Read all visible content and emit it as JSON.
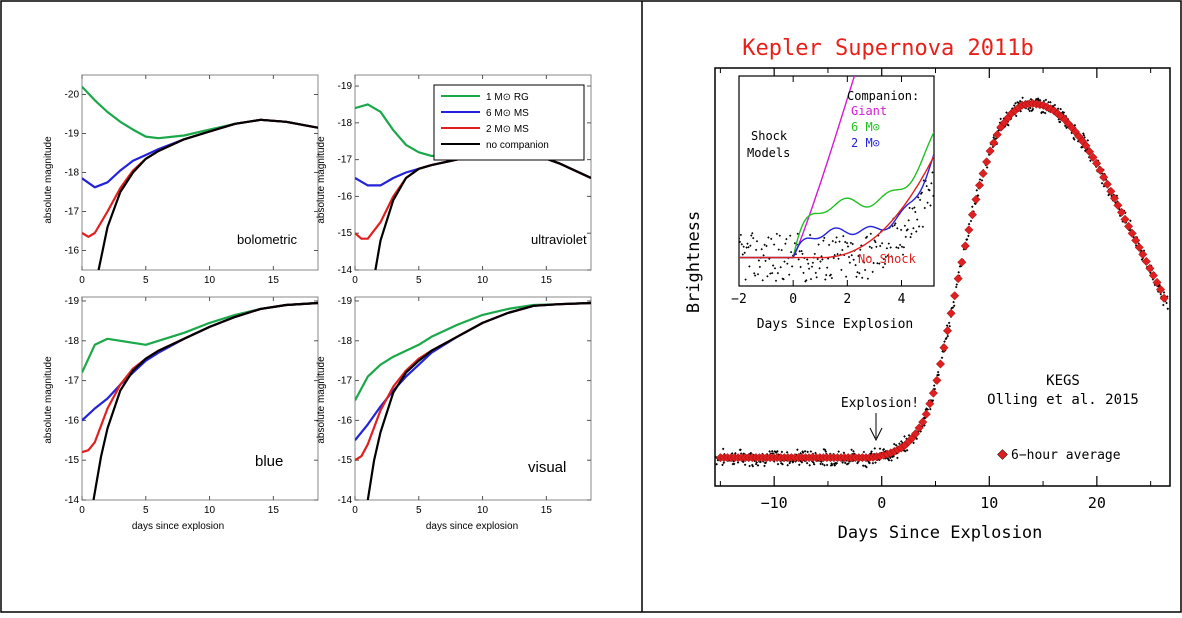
{
  "left_figure": {
    "legend": [
      {
        "label": "1 M⊙ RG",
        "color": "#1aa84a"
      },
      {
        "label": "6 M⊙ MS",
        "color": "#2323d8"
      },
      {
        "label": "2 M⊙ MS",
        "color": "#e02020"
      },
      {
        "label": "no companion",
        "color": "#000000"
      }
    ],
    "ylabel": "absolute magnitude",
    "xlabel": "days since explosion",
    "panels": [
      {
        "band": "bolometric",
        "ymin": -15.5,
        "ymax": -20.5,
        "yticks": [
          "-20",
          "-19",
          "-18",
          "-17",
          "-16"
        ],
        "yvals": [
          -20,
          -19,
          -18,
          -17,
          -16
        ]
      },
      {
        "band": "ultraviolet",
        "ymin": -14,
        "ymax": -19.3,
        "yticks": [
          "-19",
          "-18",
          "-17",
          "-16",
          "-15",
          "-14"
        ],
        "yvals": [
          -19,
          -18,
          -17,
          -16,
          -15,
          -14
        ]
      },
      {
        "band": "blue",
        "ymin": -14,
        "ymax": -19.1,
        "yticks": [
          "-19",
          "-18",
          "-17",
          "-16",
          "-15",
          "-14"
        ],
        "yvals": [
          -19,
          -18,
          -17,
          -16,
          -15,
          -14
        ]
      },
      {
        "band": "visual",
        "ymin": -14,
        "ymax": -19.1,
        "yticks": [
          "-19",
          "-18",
          "-17",
          "-16",
          "-15",
          "-14"
        ],
        "yvals": [
          -19,
          -18,
          -17,
          -16,
          -15,
          -14
        ]
      }
    ],
    "xticks": [
      "0",
      "5",
      "10",
      "15"
    ]
  },
  "right_figure": {
    "title": "Kepler Supernova 2011b",
    "ylabel": "Brightness",
    "xlabel": "Days Since Explosion",
    "xticks": [
      "−10",
      "0",
      "10",
      "20"
    ],
    "annotation": "Explosion!",
    "credit_line1": "KEGS",
    "credit_line2": "Olling et al. 2015",
    "legend_average": "6−hour average",
    "inset": {
      "xlabel": "Days Since Explosion",
      "xticks": [
        "−2",
        "0",
        "2",
        "4"
      ],
      "shock_label_1": "Shock",
      "shock_label_2": "Models",
      "companion_label": "Companion:",
      "giant_label": "Giant",
      "six_label": "6 M⊙",
      "two_label": "2 M⊙",
      "no_shock_label": "No Shock"
    }
  },
  "chart_data": [
    {
      "type": "line",
      "title": "bolometric",
      "xlabel": "days since explosion",
      "ylabel": "absolute magnitude",
      "xlim": [
        0,
        18.5
      ],
      "series": [
        {
          "name": "1 M⊙ RG",
          "x": [
            0,
            1,
            2,
            3,
            4,
            5,
            6,
            8,
            10,
            12,
            14,
            16,
            18.5
          ],
          "values": [
            -20.2,
            -19.85,
            -19.55,
            -19.3,
            -19.1,
            -18.92,
            -18.88,
            -18.95,
            -19.1,
            -19.25,
            -19.35,
            -19.3,
            -19.15
          ]
        },
        {
          "name": "6 M⊙ MS",
          "x": [
            0,
            1,
            2,
            3,
            4,
            5,
            6,
            8,
            10,
            12,
            14,
            16,
            18.5
          ],
          "values": [
            -17.85,
            -17.62,
            -17.75,
            -18.05,
            -18.3,
            -18.45,
            -18.6,
            -18.85,
            -19.05,
            -19.25,
            -19.35,
            -19.3,
            -19.15
          ]
        },
        {
          "name": "2 M⊙ MS",
          "x": [
            0,
            0.5,
            1,
            2,
            3,
            4,
            5,
            6,
            8,
            10,
            12,
            14,
            16,
            18.5
          ],
          "values": [
            -16.45,
            -16.35,
            -16.45,
            -17.0,
            -17.6,
            -18.05,
            -18.35,
            -18.55,
            -18.85,
            -19.05,
            -19.25,
            -19.35,
            -19.3,
            -19.15
          ]
        },
        {
          "name": "no companion",
          "x": [
            1.3,
            2,
            3,
            4,
            5,
            6,
            8,
            10,
            12,
            14,
            16,
            18.5
          ],
          "values": [
            -15.5,
            -16.6,
            -17.5,
            -18.0,
            -18.35,
            -18.55,
            -18.85,
            -19.05,
            -19.25,
            -19.35,
            -19.3,
            -19.15
          ]
        }
      ]
    },
    {
      "type": "line",
      "title": "ultraviolet",
      "xlabel": "days since explosion",
      "ylabel": "absolute magnitude",
      "xlim": [
        0,
        18.5
      ],
      "series": [
        {
          "name": "1 M⊙ RG",
          "x": [
            0,
            1,
            2,
            3,
            4,
            5,
            6,
            8,
            10,
            12,
            14,
            16,
            18.5
          ],
          "values": [
            -18.4,
            -18.5,
            -18.3,
            -17.8,
            -17.4,
            -17.2,
            -17.1,
            -17.1,
            -17.2,
            -17.3,
            -17.15,
            -16.9,
            -16.5
          ]
        },
        {
          "name": "6 M⊙ MS",
          "x": [
            0,
            1,
            2,
            3,
            4,
            5,
            6,
            8,
            10,
            12,
            14,
            16,
            18.5
          ],
          "values": [
            -16.5,
            -16.3,
            -16.3,
            -16.5,
            -16.65,
            -16.75,
            -16.85,
            -17.0,
            -17.2,
            -17.3,
            -17.15,
            -16.9,
            -16.5
          ]
        },
        {
          "name": "2 M⊙ MS",
          "x": [
            0,
            0.5,
            1,
            2,
            3,
            4,
            5,
            6,
            8,
            10,
            12,
            14,
            16,
            18.5
          ],
          "values": [
            -15.0,
            -14.85,
            -14.85,
            -15.3,
            -16.0,
            -16.5,
            -16.75,
            -16.85,
            -17.0,
            -17.2,
            -17.3,
            -17.15,
            -16.9,
            -16.5
          ]
        },
        {
          "name": "no companion",
          "x": [
            1.6,
            2,
            3,
            4,
            5,
            6,
            8,
            10,
            12,
            14,
            16,
            18.5
          ],
          "values": [
            -14.0,
            -14.8,
            -15.9,
            -16.5,
            -16.75,
            -16.85,
            -17.0,
            -17.2,
            -17.3,
            -17.15,
            -16.9,
            -16.5
          ]
        }
      ]
    },
    {
      "type": "line",
      "title": "blue",
      "xlabel": "days since explosion",
      "ylabel": "absolute magnitude",
      "xlim": [
        0,
        18.5
      ],
      "series": [
        {
          "name": "1 M⊙ RG",
          "x": [
            0,
            1,
            2,
            3,
            4,
            5,
            6,
            8,
            10,
            12,
            14,
            16,
            18.5
          ],
          "values": [
            -17.2,
            -17.9,
            -18.05,
            -18.0,
            -17.95,
            -17.9,
            -18.0,
            -18.2,
            -18.45,
            -18.65,
            -18.8,
            -18.9,
            -18.95
          ]
        },
        {
          "name": "6 M⊙ MS",
          "x": [
            0,
            1,
            2,
            3,
            4,
            5,
            6,
            8,
            10,
            12,
            14,
            16,
            18.5
          ],
          "values": [
            -16.0,
            -16.3,
            -16.55,
            -16.9,
            -17.2,
            -17.5,
            -17.7,
            -18.05,
            -18.35,
            -18.6,
            -18.8,
            -18.9,
            -18.95
          ]
        },
        {
          "name": "2 M⊙ MS",
          "x": [
            0,
            0.5,
            1,
            2,
            3,
            4,
            5,
            6,
            8,
            10,
            12,
            14,
            16,
            18.5
          ],
          "values": [
            -15.2,
            -15.25,
            -15.45,
            -16.3,
            -16.9,
            -17.3,
            -17.55,
            -17.75,
            -18.05,
            -18.35,
            -18.6,
            -18.8,
            -18.9,
            -18.95
          ]
        },
        {
          "name": "no companion",
          "x": [
            0.9,
            1.5,
            2,
            3,
            4,
            5,
            6,
            8,
            10,
            12,
            14,
            16,
            18.5
          ],
          "values": [
            -14.0,
            -15.1,
            -15.8,
            -16.75,
            -17.25,
            -17.55,
            -17.75,
            -18.05,
            -18.35,
            -18.6,
            -18.8,
            -18.9,
            -18.95
          ]
        }
      ]
    },
    {
      "type": "line",
      "title": "visual",
      "xlabel": "days since explosion",
      "ylabel": "absolute magnitude",
      "xlim": [
        0,
        18.5
      ],
      "series": [
        {
          "name": "1 M⊙ RG",
          "x": [
            0,
            1,
            2,
            3,
            4,
            5,
            6,
            8,
            10,
            12,
            14,
            16,
            18.5
          ],
          "values": [
            -16.5,
            -17.1,
            -17.4,
            -17.6,
            -17.75,
            -17.9,
            -18.1,
            -18.4,
            -18.65,
            -18.8,
            -18.9,
            -18.92,
            -18.95
          ]
        },
        {
          "name": "6 M⊙ MS",
          "x": [
            0,
            1,
            2,
            3,
            4,
            5,
            6,
            8,
            10,
            12,
            14,
            16,
            18.5
          ],
          "values": [
            -15.5,
            -15.9,
            -16.35,
            -16.75,
            -17.1,
            -17.4,
            -17.7,
            -18.1,
            -18.45,
            -18.7,
            -18.88,
            -18.92,
            -18.95
          ]
        },
        {
          "name": "2 M⊙ MS",
          "x": [
            0,
            0.5,
            1,
            2,
            3,
            4,
            5,
            6,
            8,
            10,
            12,
            14,
            16,
            18.5
          ],
          "values": [
            -15.0,
            -15.1,
            -15.4,
            -16.25,
            -16.85,
            -17.25,
            -17.55,
            -17.75,
            -18.1,
            -18.45,
            -18.7,
            -18.88,
            -18.92,
            -18.95
          ]
        },
        {
          "name": "no companion",
          "x": [
            1.0,
            1.5,
            2,
            3,
            4,
            5,
            6,
            8,
            10,
            12,
            14,
            16,
            18.5
          ],
          "values": [
            -14.0,
            -15.0,
            -15.7,
            -16.7,
            -17.2,
            -17.5,
            -17.75,
            -18.1,
            -18.45,
            -18.7,
            -18.88,
            -18.92,
            -18.95
          ]
        }
      ]
    },
    {
      "type": "scatter",
      "title": "Kepler Supernova 2011b",
      "xlabel": "Days Since Explosion",
      "ylabel": "Brightness",
      "xlim": [
        -15.5,
        26.8
      ],
      "ylim": [
        -0.08,
        1.1
      ],
      "series": [
        {
          "name": "6−hour average",
          "x": [
            -15,
            -14,
            -13,
            -12,
            -11,
            -10,
            -9,
            -8,
            -7,
            -6,
            -5,
            -4,
            -3,
            -2,
            -1,
            0,
            1,
            2,
            3,
            4,
            5,
            6,
            7,
            8,
            9,
            10,
            11,
            12,
            13,
            14,
            15,
            16,
            17,
            18,
            19,
            20,
            21,
            22,
            23,
            24,
            25,
            26,
            26.5
          ],
          "values": [
            0,
            0,
            0,
            0,
            0,
            0,
            0,
            0,
            0,
            0,
            0,
            0,
            0,
            0,
            0,
            0.005,
            0.015,
            0.03,
            0.06,
            0.11,
            0.2,
            0.34,
            0.49,
            0.63,
            0.76,
            0.86,
            0.93,
            0.97,
            0.995,
            1.0,
            0.995,
            0.98,
            0.955,
            0.92,
            0.88,
            0.83,
            0.77,
            0.71,
            0.65,
            0.59,
            0.53,
            0.47,
            0.43
          ]
        }
      ]
    }
  ]
}
